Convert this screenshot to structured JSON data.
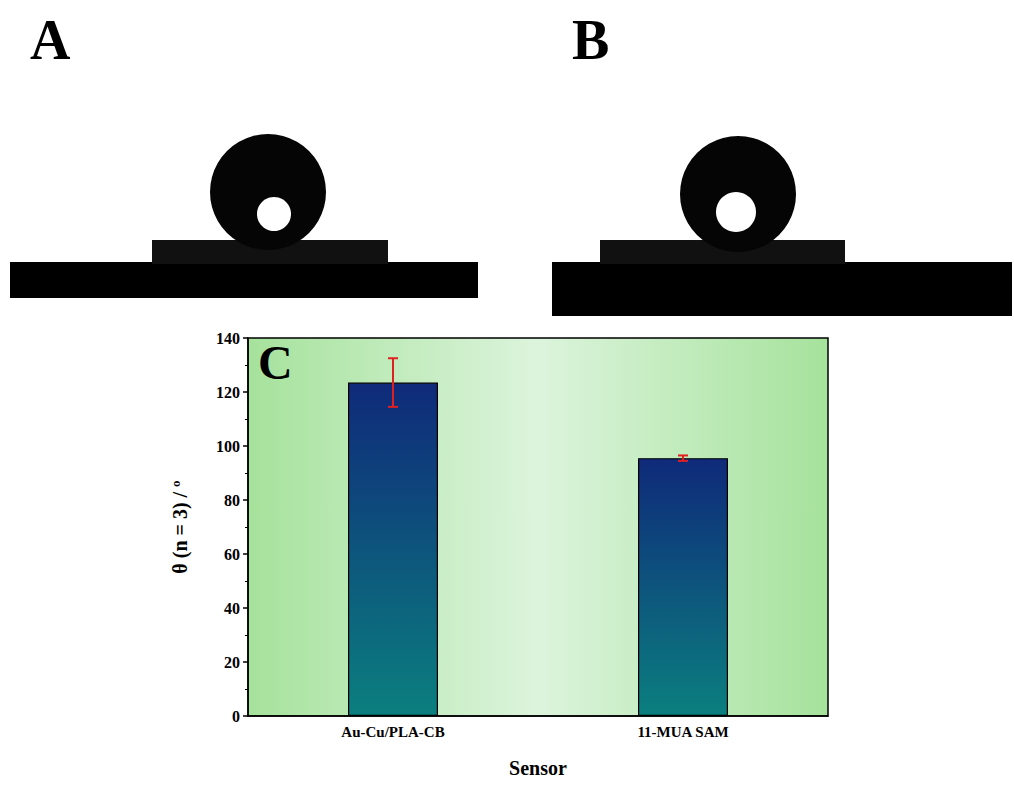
{
  "panels": [
    {
      "label": "A"
    },
    {
      "label": "B"
    }
  ],
  "chart_data": {
    "type": "bar",
    "panel_label": "C",
    "x_label": "Sensor",
    "y_label": "θ (n = 3) / º",
    "categories": [
      "Au-Cu/PLA-CB",
      "11-MUA SAM"
    ],
    "values": [
      123.5,
      95.5
    ],
    "errors": [
      9,
      1
    ],
    "color": "#0f2a7a",
    "ylim": [
      0,
      140
    ],
    "yticks": [
      0,
      20,
      40,
      60,
      80,
      100,
      120,
      140
    ],
    "grid": false
  }
}
